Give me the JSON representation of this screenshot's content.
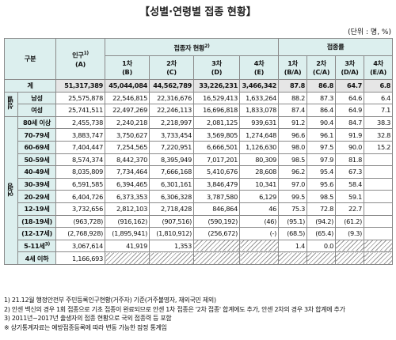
{
  "title": "【성별·연령별 접종 현황】",
  "unit": "(단위 : 명, %)",
  "table": {
    "header": {
      "group": "구분",
      "population": {
        "text": "인구",
        "note": "1)",
        "sub": "(A)"
      },
      "vaccinated": {
        "text": "접종자 현황",
        "note": "2)"
      },
      "rate": "접종률",
      "doses": [
        {
          "text": "1차",
          "sub": "(B)"
        },
        {
          "text": "2차",
          "sub": "(C)"
        },
        {
          "text": "3차",
          "sub": "(D)"
        },
        {
          "text": "4차",
          "sub": "(E)"
        }
      ],
      "rates": [
        {
          "text": "1차",
          "sub": "(B/A)"
        },
        {
          "text": "2차",
          "sub": "(C/A)"
        },
        {
          "text": "3차",
          "sub": "(D/A)"
        },
        {
          "text": "4차",
          "sub": "(E/A)"
        }
      ]
    },
    "total": {
      "label": "계",
      "values": [
        "51,317,389",
        "45,044,084",
        "44,562,789",
        "33,226,231",
        "3,466,342",
        "87.8",
        "86.8",
        "64.7",
        "6.8"
      ]
    },
    "groups": [
      {
        "name": "성별",
        "rows": [
          {
            "label": "남성",
            "values": [
              "25,575,878",
              "22,546,815",
              "22,316,676",
              "16,529,413",
              "1,633,264",
              "88.2",
              "87.3",
              "64.6",
              "6.4"
            ]
          },
          {
            "label": "여성",
            "values": [
              "25,741,511",
              "22,497,269",
              "22,246,113",
              "16,696,818",
              "1,833,078",
              "87.4",
              "86.4",
              "64.9",
              "7.1"
            ]
          }
        ]
      },
      {
        "name": "연령",
        "rows": [
          {
            "label": "80세 이상",
            "values": [
              "2,455,738",
              "2,240,218",
              "2,218,997",
              "2,081,125",
              "939,631",
              "91.2",
              "90.4",
              "84.7",
              "38.3"
            ]
          },
          {
            "label": "70-79세",
            "values": [
              "3,883,747",
              "3,750,627",
              "3,733,454",
              "3,569,805",
              "1,274,648",
              "96.6",
              "96.1",
              "91.9",
              "32.8"
            ]
          },
          {
            "label": "60-69세",
            "values": [
              "7,404,447",
              "7,254,565",
              "7,220,951",
              "6,666,501",
              "1,126,630",
              "98.0",
              "97.5",
              "90.0",
              "15.2"
            ]
          },
          {
            "label": "50-59세",
            "values": [
              "8,574,374",
              "8,442,370",
              "8,395,949",
              "7,017,201",
              "80,309",
              "98.5",
              "97.9",
              "81.8",
              null
            ]
          },
          {
            "label": "40-49세",
            "values": [
              "8,035,809",
              "7,734,464",
              "7,666,168",
              "5,410,676",
              "28,608",
              "96.2",
              "95.4",
              "67.3",
              null
            ]
          },
          {
            "label": "30-39세",
            "values": [
              "6,591,585",
              "6,394,465",
              "6,301,161",
              "3,846,479",
              "10,341",
              "97.0",
              "95.6",
              "58.4",
              null
            ]
          },
          {
            "label": "20-29세",
            "values": [
              "6,404,726",
              "6,373,353",
              "6,306,328",
              "3,787,580",
              "6,129",
              "99.5",
              "98.5",
              "59.1",
              null
            ]
          },
          {
            "label": "12-19세",
            "values": [
              "3,732,656",
              "2,812,103",
              "2,718,428",
              "846,864",
              "46",
              "75.3",
              "72.8",
              "22.7",
              null
            ]
          },
          {
            "label": "(18-19세)",
            "values": [
              "(963,728)",
              "(916,162)",
              "(907,516)",
              "(590,192)",
              "(46)",
              "(95.1)",
              "(94.2)",
              "(61.2)",
              null
            ]
          },
          {
            "label": "(12-17세)",
            "values": [
              "(2,768,928)",
              "(1,895,941)",
              "(1,810,912)",
              "(256,672)",
              "(-)",
              "(68.5)",
              "(65.4)",
              "(9.3)",
              null
            ]
          },
          {
            "label": "5-11세",
            "note": "3)",
            "values": [
              "3,067,614",
              "41,919",
              "1,353",
              null,
              null,
              "1.4",
              "0.0",
              null,
              null
            ]
          },
          {
            "label": "4세 이하",
            "values": [
              "1,166,693",
              null,
              null,
              null,
              null,
              null,
              null,
              null,
              null
            ]
          }
        ]
      }
    ]
  },
  "footnotes": [
    "1) 21.12월 행정안전부 주민등록인구현황(거주자) 기준(거주불명자, 재외국민 제외)",
    "2) 안센 백신의 경우 1회 접종으로 기초 접종이 완료되므로 안센 1차 접종은 '2차 접종' 합계에도 추가, 안센 2차의 경우 3차 합계에 추가",
    "3) 2011년~2017년 출생자의 접종 현황으로 국외 접종력 등 포함",
    "※ 상기통계자료는 예방접종등록에 따라 변동 가능한 잠정 통계임"
  ]
}
